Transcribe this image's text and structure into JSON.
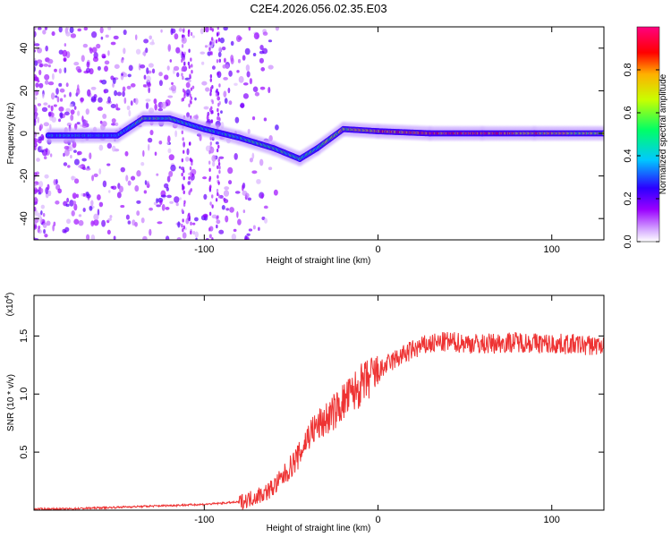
{
  "figure_title": "C2E4.2026.056.02.35.E03",
  "chart_data": [
    {
      "type": "heatmap",
      "title": "",
      "xlabel": "Height of straight line (km)",
      "ylabel": "Frequency (Hz)",
      "xlim": [
        -198,
        130
      ],
      "ylim": [
        -50,
        50
      ],
      "xticks": [
        -100,
        0,
        100
      ],
      "yticks": [
        -40,
        -20,
        0,
        20,
        40
      ],
      "colorbar": {
        "label": "Normalized spectral amplitude",
        "range": [
          0.0,
          1.0
        ],
        "ticks": [
          "0.0",
          "0.2",
          "0.4",
          "0.6",
          "0.8"
        ],
        "colormap": [
          "#ffffff",
          "#9a00ff",
          "#2b00ff",
          "#00c8ff",
          "#00ff66",
          "#c8ff00",
          "#ffb000",
          "#ff0000",
          "#ff0080"
        ]
      },
      "signal_track": [
        {
          "x": -190,
          "y": -1,
          "amp": 0.35
        },
        {
          "x": -170,
          "y": -1,
          "amp": 0.4
        },
        {
          "x": -150,
          "y": -1,
          "amp": 0.3
        },
        {
          "x": -135,
          "y": 7,
          "amp": 0.55
        },
        {
          "x": -120,
          "y": 7,
          "amp": 0.55
        },
        {
          "x": -100,
          "y": 2,
          "amp": 0.4
        },
        {
          "x": -80,
          "y": -2,
          "amp": 0.45
        },
        {
          "x": -60,
          "y": -7,
          "amp": 0.5
        },
        {
          "x": -45,
          "y": -12,
          "amp": 0.45
        },
        {
          "x": -35,
          "y": -7,
          "amp": 0.5
        },
        {
          "x": -20,
          "y": 2,
          "amp": 0.65
        },
        {
          "x": 0,
          "y": 1,
          "amp": 0.75
        },
        {
          "x": 30,
          "y": 0,
          "amp": 0.85
        },
        {
          "x": 60,
          "y": 0,
          "amp": 0.85
        },
        {
          "x": 90,
          "y": 0,
          "amp": 0.75
        },
        {
          "x": 130,
          "y": 0,
          "amp": 0.6
        }
      ]
    },
    {
      "type": "line",
      "title": "",
      "xlabel": "Height of straight line (km)",
      "ylabel": "SNR (10 * v/v)",
      "y_multiplier": "(x10",
      "y_multiplier_exp": "4",
      "y_multiplier_close": ")",
      "xlim": [
        -198,
        130
      ],
      "ylim": [
        0,
        1.85
      ],
      "xticks": [
        -100,
        0,
        100
      ],
      "yticks": [
        "0.5",
        "1.0",
        "1.5"
      ],
      "series": [
        {
          "name": "SNR",
          "color": "#ee3333",
          "x": [
            -198,
            -180,
            -160,
            -140,
            -120,
            -100,
            -90,
            -80,
            -75,
            -70,
            -65,
            -60,
            -55,
            -50,
            -45,
            -42,
            -40,
            -35,
            -30,
            -25,
            -20,
            -15,
            -10,
            -5,
            0,
            5,
            10,
            15,
            20,
            25,
            30,
            35,
            40,
            50,
            60,
            70,
            80,
            90,
            100,
            110,
            120,
            130
          ],
          "y": [
            0.01,
            0.01,
            0.02,
            0.03,
            0.04,
            0.05,
            0.06,
            0.07,
            0.09,
            0.12,
            0.15,
            0.2,
            0.28,
            0.38,
            0.48,
            0.58,
            0.65,
            0.72,
            0.78,
            0.85,
            0.93,
            1.0,
            1.07,
            1.13,
            1.18,
            1.25,
            1.3,
            1.34,
            1.38,
            1.41,
            1.43,
            1.44,
            1.45,
            1.44,
            1.43,
            1.44,
            1.45,
            1.44,
            1.43,
            1.43,
            1.42,
            1.42
          ]
        }
      ]
    }
  ]
}
